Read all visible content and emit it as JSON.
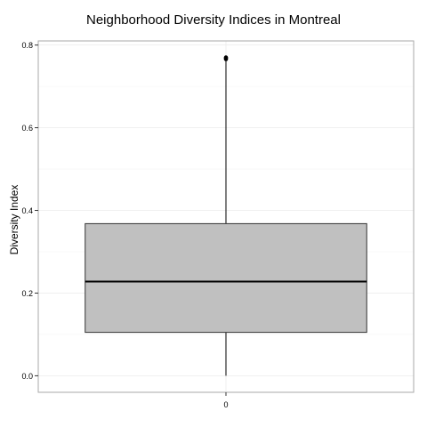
{
  "chart_data": {
    "type": "box",
    "title": "Neighborhood Diversity Indices in Montreal",
    "xlabel": "",
    "ylabel": "Diversity Index",
    "categories": [
      "0"
    ],
    "ylim": [
      -0.04,
      0.81
    ],
    "y_ticks": [
      0.0,
      0.2,
      0.4,
      0.6,
      0.8
    ],
    "y_tick_labels": [
      "0.0",
      "0.2",
      "0.4",
      "0.6",
      "0.8"
    ],
    "grid": true,
    "boxes": [
      {
        "category": "0",
        "whisker_low": 0.0,
        "q1": 0.105,
        "median": 0.228,
        "q3": 0.368,
        "whisker_high": 0.765,
        "outliers": [
          0.766,
          0.768,
          0.77
        ]
      }
    ],
    "box_fill": "#c0c0c0",
    "box_stroke": "#333333",
    "grid_color": "#ebebeb",
    "panel_border": "#aaaaaa"
  }
}
